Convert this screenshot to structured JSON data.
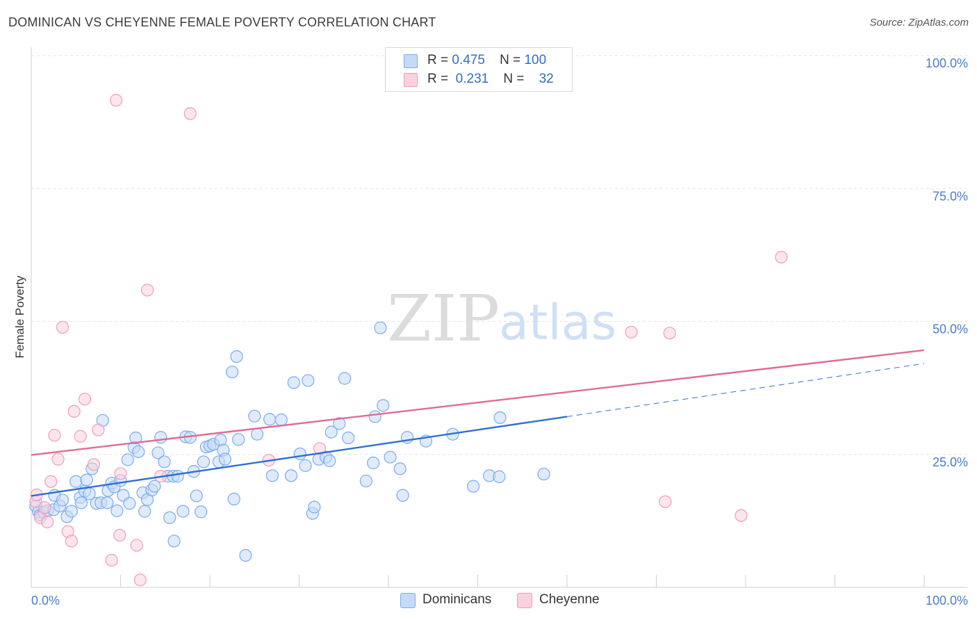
{
  "chart_data": {
    "type": "scatter",
    "title": "DOMINICAN VS CHEYENNE FEMALE POVERTY CORRELATION CHART",
    "source": "Source: ZipAtlas.com",
    "xlabel": "",
    "ylabel": "Female Poverty",
    "xlim": [
      0,
      100
    ],
    "ylim": [
      0,
      100
    ],
    "x_tick_labels": [
      "0.0%",
      "100.0%"
    ],
    "y_tick_labels": [
      "25.0%",
      "50.0%",
      "75.0%",
      "100.0%"
    ],
    "y_tick_values": [
      25,
      50,
      75,
      100
    ],
    "watermark": {
      "part1": "ZIP",
      "part2": "atlas"
    },
    "legend": {
      "rows": [
        {
          "r_label": "R =",
          "r_value": "0.475",
          "n_label": "N =",
          "n_value": "100"
        },
        {
          "r_label": "R =",
          "r_value": "0.231",
          "n_label": "N =",
          "n_value": "32"
        }
      ]
    },
    "series": [
      {
        "name": "Dominicans",
        "color": "#7aaaf0",
        "fill": "#c5daf7",
        "line_color": "#2f6fd0",
        "trend": {
          "x0": 0,
          "y0": 17.2,
          "x1": 60,
          "y1": 32.1,
          "x_dash_end": 100,
          "y_dash_end": 42.1
        },
        "points": [
          [
            0.5,
            15.3
          ],
          [
            0.8,
            14.2
          ],
          [
            1.0,
            13.6
          ],
          [
            1.4,
            14.1
          ],
          [
            1.8,
            14.4
          ],
          [
            2.5,
            14.6
          ],
          [
            2.6,
            17.3
          ],
          [
            3.2,
            15.3
          ],
          [
            3.5,
            16.4
          ],
          [
            4.0,
            13.3
          ],
          [
            4.5,
            14.3
          ],
          [
            5.0,
            19.9
          ],
          [
            5.5,
            16.9
          ],
          [
            5.6,
            15.9
          ],
          [
            6.0,
            18.1
          ],
          [
            6.2,
            20.2
          ],
          [
            6.5,
            17.6
          ],
          [
            6.8,
            22.3
          ],
          [
            7.3,
            15.8
          ],
          [
            7.8,
            15.9
          ],
          [
            8.0,
            31.4
          ],
          [
            8.5,
            15.9
          ],
          [
            8.6,
            18.2
          ],
          [
            9.0,
            19.6
          ],
          [
            9.3,
            18.9
          ],
          [
            9.6,
            14.4
          ],
          [
            10.0,
            20.1
          ],
          [
            10.3,
            17.3
          ],
          [
            10.8,
            24.0
          ],
          [
            11.0,
            15.8
          ],
          [
            11.5,
            26.3
          ],
          [
            11.7,
            28.1
          ],
          [
            12.0,
            25.5
          ],
          [
            12.5,
            17.8
          ],
          [
            12.7,
            14.3
          ],
          [
            13.0,
            16.5
          ],
          [
            13.5,
            18.3
          ],
          [
            13.8,
            19.0
          ],
          [
            14.2,
            25.3
          ],
          [
            14.5,
            28.2
          ],
          [
            14.9,
            23.6
          ],
          [
            15.3,
            20.9
          ],
          [
            15.5,
            13.1
          ],
          [
            15.9,
            20.9
          ],
          [
            16.0,
            8.7
          ],
          [
            16.4,
            20.9
          ],
          [
            17.0,
            14.3
          ],
          [
            17.3,
            28.3
          ],
          [
            17.8,
            28.2
          ],
          [
            18.2,
            21.8
          ],
          [
            18.5,
            17.2
          ],
          [
            19.0,
            14.2
          ],
          [
            19.3,
            23.6
          ],
          [
            19.6,
            26.4
          ],
          [
            20.0,
            26.6
          ],
          [
            20.4,
            26.9
          ],
          [
            21.0,
            23.6
          ],
          [
            21.2,
            27.7
          ],
          [
            21.5,
            25.8
          ],
          [
            21.7,
            24.1
          ],
          [
            22.5,
            40.5
          ],
          [
            22.7,
            16.6
          ],
          [
            23.0,
            43.4
          ],
          [
            23.2,
            27.8
          ],
          [
            24.0,
            6.0
          ],
          [
            25.0,
            32.2
          ],
          [
            25.3,
            28.8
          ],
          [
            26.7,
            31.6
          ],
          [
            27.0,
            21.0
          ],
          [
            28.0,
            31.5
          ],
          [
            29.1,
            21.0
          ],
          [
            29.4,
            38.5
          ],
          [
            30.1,
            25.1
          ],
          [
            30.7,
            22.9
          ],
          [
            31.0,
            38.9
          ],
          [
            31.5,
            13.9
          ],
          [
            31.7,
            15.1
          ],
          [
            32.2,
            24.1
          ],
          [
            33.0,
            24.5
          ],
          [
            33.4,
            23.8
          ],
          [
            33.6,
            29.2
          ],
          [
            34.5,
            30.8
          ],
          [
            35.1,
            39.3
          ],
          [
            35.5,
            28.1
          ],
          [
            37.5,
            20.0
          ],
          [
            38.3,
            23.4
          ],
          [
            38.5,
            32.1
          ],
          [
            39.1,
            48.8
          ],
          [
            39.4,
            34.2
          ],
          [
            40.2,
            24.5
          ],
          [
            41.3,
            22.3
          ],
          [
            41.6,
            17.3
          ],
          [
            42.1,
            28.2
          ],
          [
            44.2,
            27.5
          ],
          [
            47.2,
            28.8
          ],
          [
            49.5,
            19.0
          ],
          [
            51.3,
            21.0
          ],
          [
            52.4,
            20.8
          ],
          [
            52.5,
            31.9
          ],
          [
            57.4,
            21.3
          ]
        ]
      },
      {
        "name": "Cheyenne",
        "color": "#f19bb8",
        "fill": "#fad1df",
        "line_color": "#e06a96",
        "trend": {
          "x0": 0,
          "y0": 24.9,
          "x1": 100,
          "y1": 44.6
        },
        "points": [
          [
            0.5,
            16.1
          ],
          [
            0.6,
            17.4
          ],
          [
            1.0,
            13.1
          ],
          [
            1.5,
            15.0
          ],
          [
            1.8,
            12.3
          ],
          [
            2.2,
            19.9
          ],
          [
            2.6,
            28.6
          ],
          [
            3.0,
            24.1
          ],
          [
            3.5,
            48.9
          ],
          [
            4.1,
            10.5
          ],
          [
            4.5,
            8.7
          ],
          [
            4.8,
            33.1
          ],
          [
            5.5,
            28.4
          ],
          [
            6.0,
            35.4
          ],
          [
            7.0,
            23.1
          ],
          [
            7.5,
            29.6
          ],
          [
            9.0,
            5.1
          ],
          [
            9.5,
            91.6
          ],
          [
            9.9,
            9.8
          ],
          [
            10.0,
            21.4
          ],
          [
            11.8,
            7.9
          ],
          [
            12.2,
            1.4
          ],
          [
            13.0,
            55.9
          ],
          [
            14.5,
            20.9
          ],
          [
            17.8,
            89.1
          ],
          [
            26.6,
            23.9
          ],
          [
            32.3,
            26.1
          ],
          [
            84.0,
            62.1
          ],
          [
            67.2,
            48.0
          ],
          [
            71.5,
            47.8
          ],
          [
            71.0,
            16.1
          ],
          [
            79.5,
            13.5
          ]
        ]
      }
    ]
  },
  "bottom_legend": [
    "Dominicans",
    "Cheyenne"
  ]
}
